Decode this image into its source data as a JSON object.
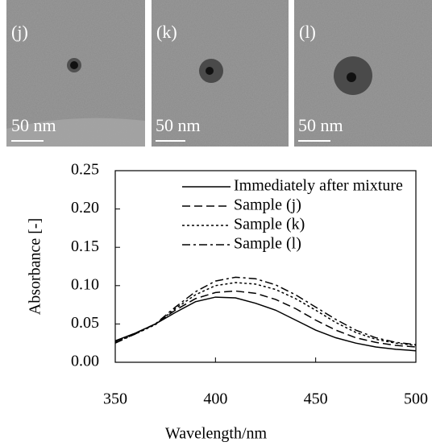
{
  "images": [
    {
      "label": "(j)",
      "scale": "50 nm"
    },
    {
      "label": "(k)",
      "scale": "50 nm"
    },
    {
      "label": "(l)",
      "scale": "50 nm"
    }
  ],
  "chart_data": {
    "type": "line",
    "x_label": "Wavelength/nm",
    "y_label": "Absorbance [-]",
    "x": [
      350,
      360,
      370,
      380,
      390,
      400,
      410,
      420,
      430,
      440,
      450,
      460,
      470,
      480,
      490,
      500
    ],
    "series": [
      {
        "name": "Immediately after mixture",
        "color": "#000000",
        "dash": "none",
        "values": [
          0.028,
          0.038,
          0.05,
          0.065,
          0.079,
          0.085,
          0.084,
          0.077,
          0.068,
          0.055,
          0.042,
          0.032,
          0.025,
          0.02,
          0.017,
          0.015
        ]
      },
      {
        "name": "Sample (j)",
        "color": "#000000",
        "dash": "10,5",
        "values": [
          0.027,
          0.038,
          0.05,
          0.068,
          0.083,
          0.091,
          0.093,
          0.09,
          0.082,
          0.07,
          0.055,
          0.042,
          0.032,
          0.026,
          0.022,
          0.02
        ]
      },
      {
        "name": "Sample (k)",
        "color": "#000000",
        "dash": "3,3",
        "values": [
          0.026,
          0.037,
          0.049,
          0.07,
          0.088,
          0.1,
          0.104,
          0.102,
          0.095,
          0.083,
          0.068,
          0.052,
          0.039,
          0.03,
          0.025,
          0.022
        ]
      },
      {
        "name": "Sample (l)",
        "color": "#000000",
        "dash": "10,4,3,4",
        "values": [
          0.025,
          0.037,
          0.05,
          0.072,
          0.092,
          0.106,
          0.111,
          0.109,
          0.101,
          0.088,
          0.072,
          0.056,
          0.042,
          0.032,
          0.026,
          0.023
        ]
      }
    ],
    "xlim": [
      350,
      500
    ],
    "xticks": [
      350,
      400,
      450,
      500
    ],
    "ylim": [
      0,
      0.25
    ],
    "yticks": [
      {
        "value": 0,
        "label": "0.00"
      },
      {
        "value": 0.05,
        "label": "0.05"
      },
      {
        "value": 0.1,
        "label": "0.10"
      },
      {
        "value": 0.15,
        "label": "0.15"
      },
      {
        "value": 0.2,
        "label": "0.20"
      },
      {
        "value": 0.25,
        "label": "0.25"
      }
    ],
    "legend": "top-right",
    "grid": false
  }
}
